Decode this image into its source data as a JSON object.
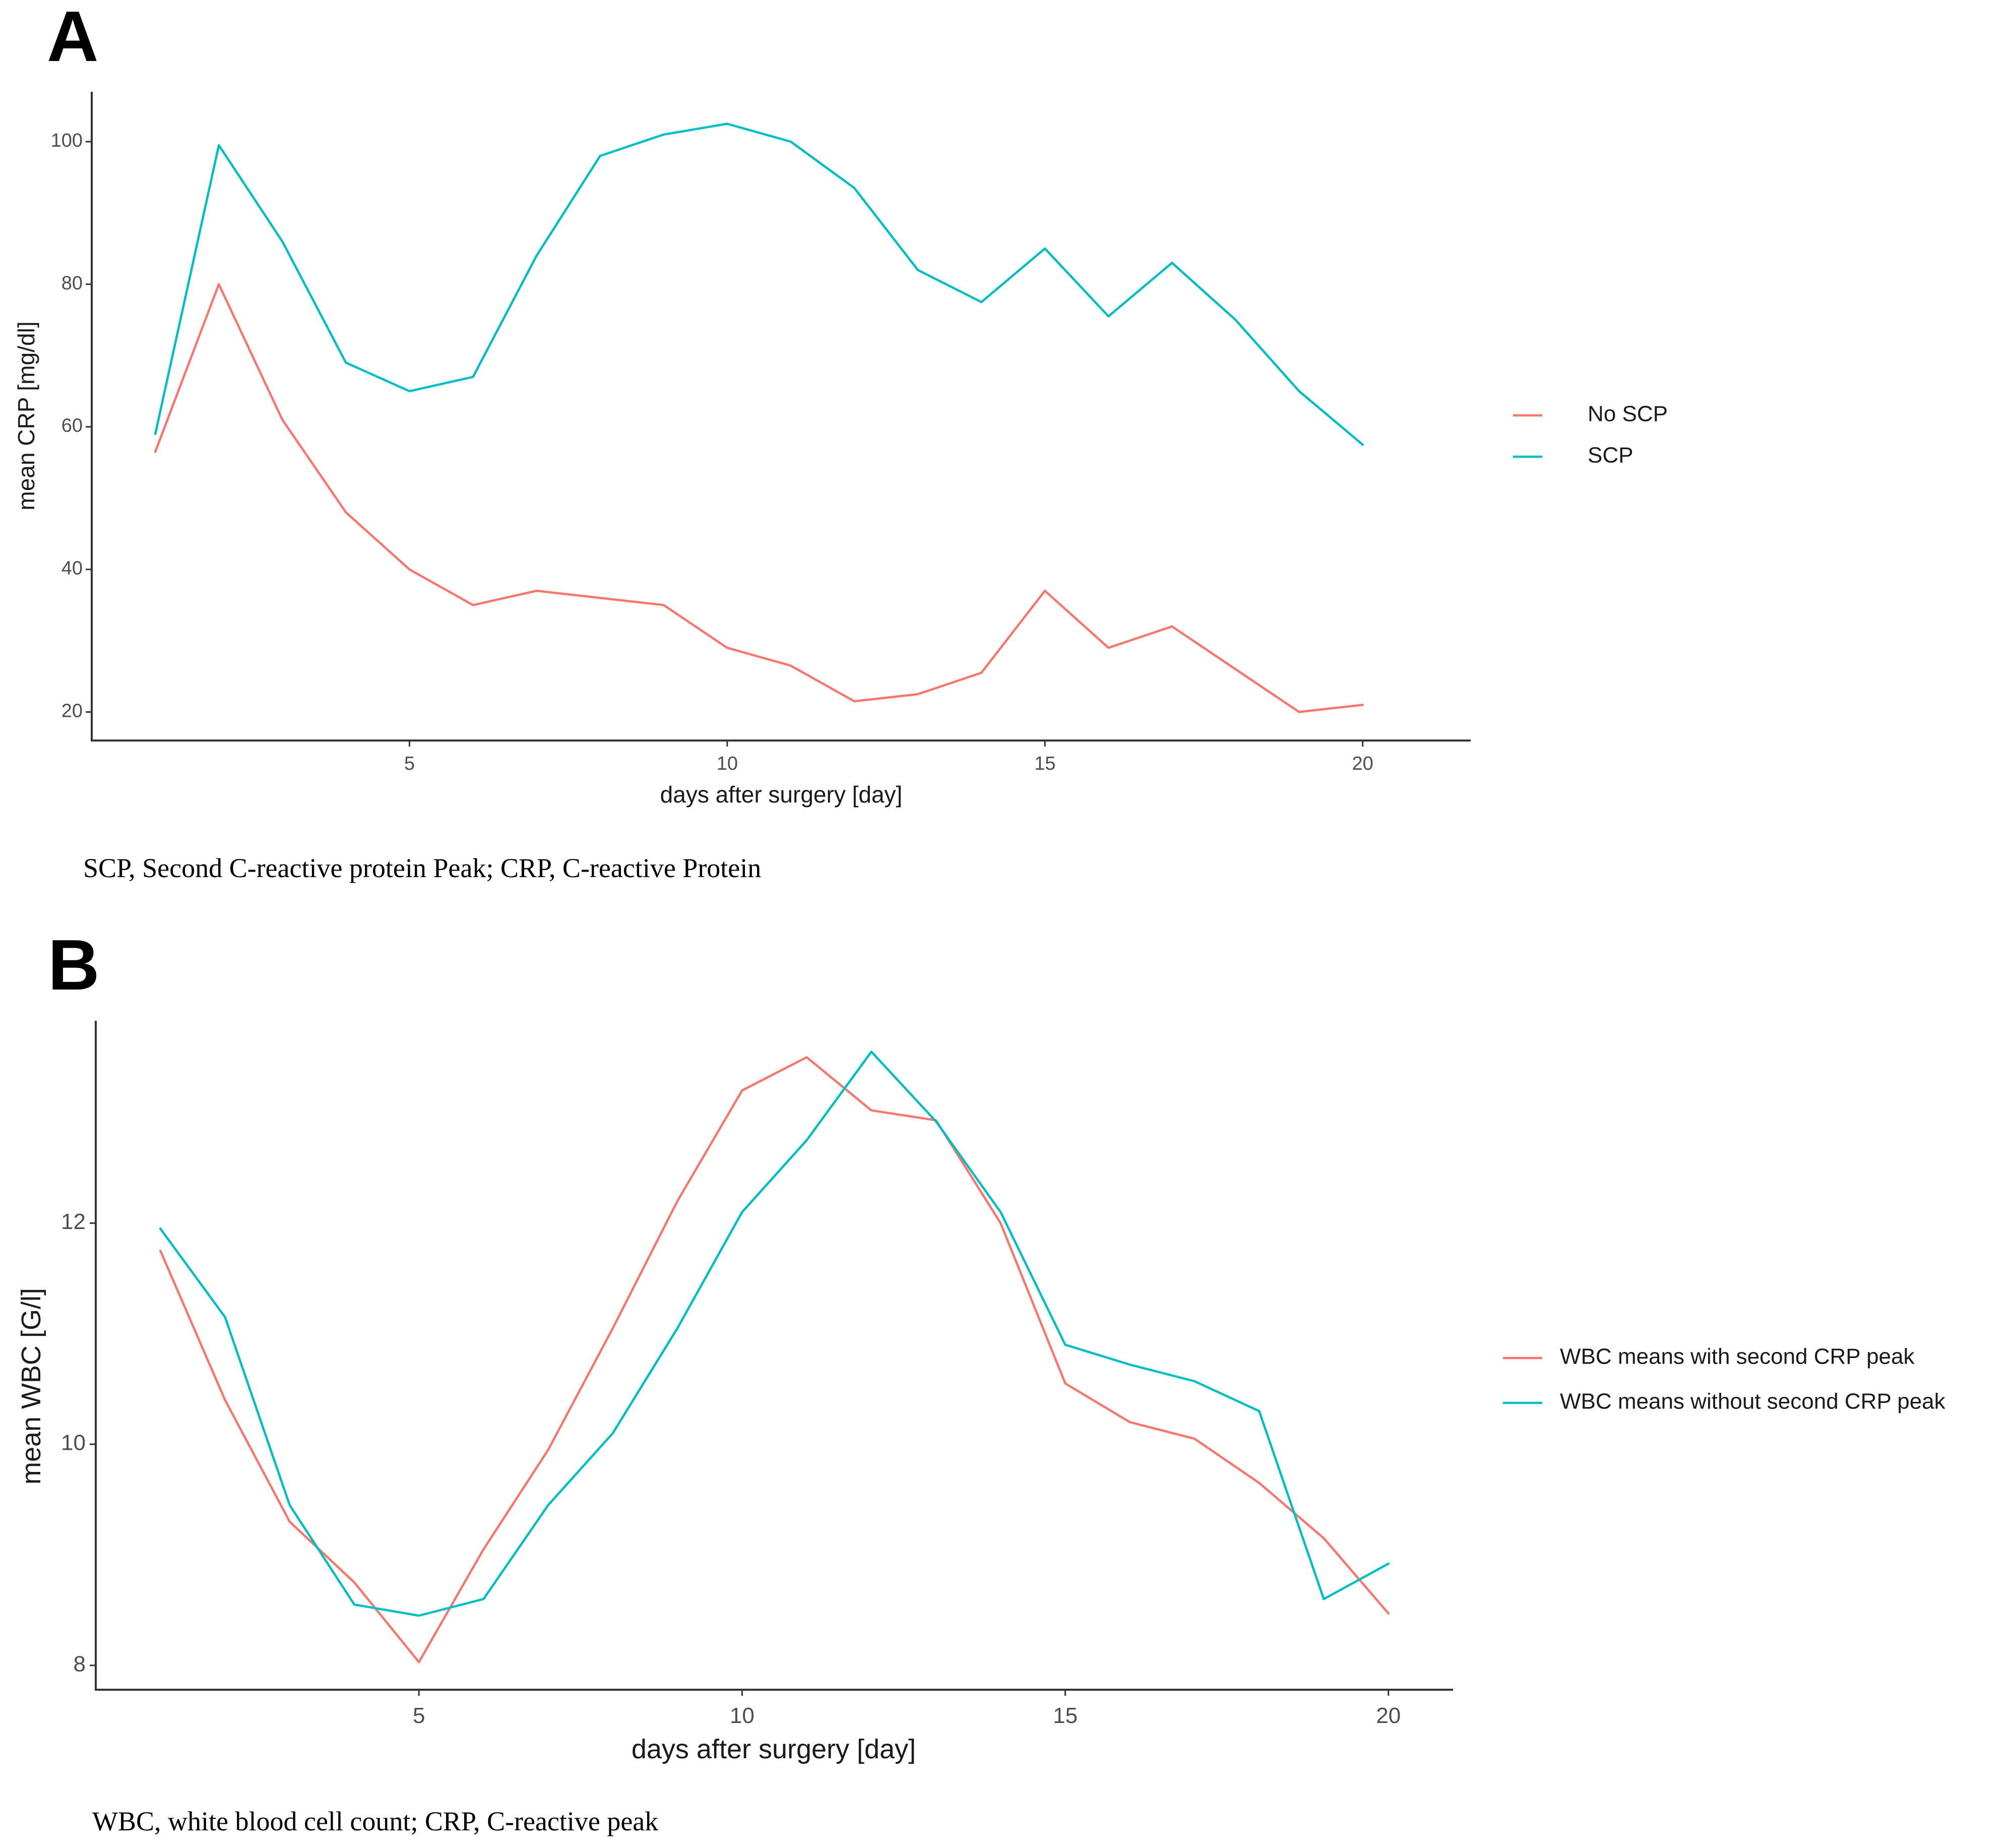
{
  "chart_data": [
    {
      "panel": "A",
      "type": "line",
      "title": "",
      "xlabel": "days after surgery [day]",
      "ylabel": "mean CRP [mg/dl]",
      "xlim": [
        0,
        21.7
      ],
      "ylim": [
        16,
        107
      ],
      "xticks": [
        "5",
        "10",
        "15",
        "20"
      ],
      "yticks": [
        "20",
        "40",
        "60",
        "80",
        "100"
      ],
      "grid": false,
      "legend_position": "right",
      "x": [
        1,
        2,
        3,
        4,
        5,
        6,
        7,
        8,
        9,
        10,
        11,
        12,
        13,
        14,
        15,
        16,
        17,
        18,
        19,
        20
      ],
      "series": [
        {
          "name": "No SCP",
          "color": "#F8766D",
          "values": [
            56.5,
            80,
            61,
            48,
            40,
            35,
            37,
            36,
            35,
            29,
            26.5,
            21.5,
            22.5,
            25.5,
            37,
            29,
            32,
            26,
            20,
            21
          ]
        },
        {
          "name": "SCP",
          "color": "#00BFC4",
          "values": [
            59,
            99.5,
            86,
            69,
            65,
            67,
            84,
            98,
            101,
            102.5,
            100,
            93.5,
            82,
            77.5,
            85,
            75.5,
            83,
            75,
            65,
            57.5
          ]
        }
      ],
      "caption": "SCP, Second C-reactive protein Peak; CRP, C-reactive Protein"
    },
    {
      "panel": "B",
      "type": "line",
      "title": "",
      "xlabel": "days after surgery [day]",
      "ylabel": "mean WBC [G/l]",
      "xlim": [
        0,
        21.0
      ],
      "ylim": [
        7.78,
        13.83
      ],
      "xticks": [
        "5",
        "10",
        "15",
        "20"
      ],
      "yticks": [
        "8",
        "10",
        "12"
      ],
      "grid": false,
      "legend_position": "right",
      "x": [
        1,
        2,
        3,
        4,
        5,
        6,
        7,
        8,
        9,
        10,
        11,
        12,
        13,
        14,
        15,
        16,
        17,
        18,
        19,
        20
      ],
      "series": [
        {
          "name": "WBC means with second CRP peak",
          "color": "#F8766D",
          "values": [
            11.75,
            10.4,
            9.3,
            8.75,
            8.03,
            9.05,
            9.95,
            11.05,
            12.2,
            13.2,
            13.5,
            13.02,
            12.93,
            12.0,
            10.55,
            10.2,
            10.05,
            9.65,
            9.15,
            8.47
          ]
        },
        {
          "name": "WBC means without second CRP peak",
          "color": "#00BFC4",
          "values": [
            11.95,
            11.15,
            9.45,
            8.55,
            8.45,
            8.6,
            9.45,
            10.1,
            11.05,
            12.1,
            12.75,
            13.55,
            12.92,
            12.1,
            10.9,
            10.72,
            10.57,
            10.3,
            8.6,
            8.92
          ]
        }
      ],
      "caption": "WBC, white blood cell count; CRP, C-reactive peak"
    }
  ]
}
